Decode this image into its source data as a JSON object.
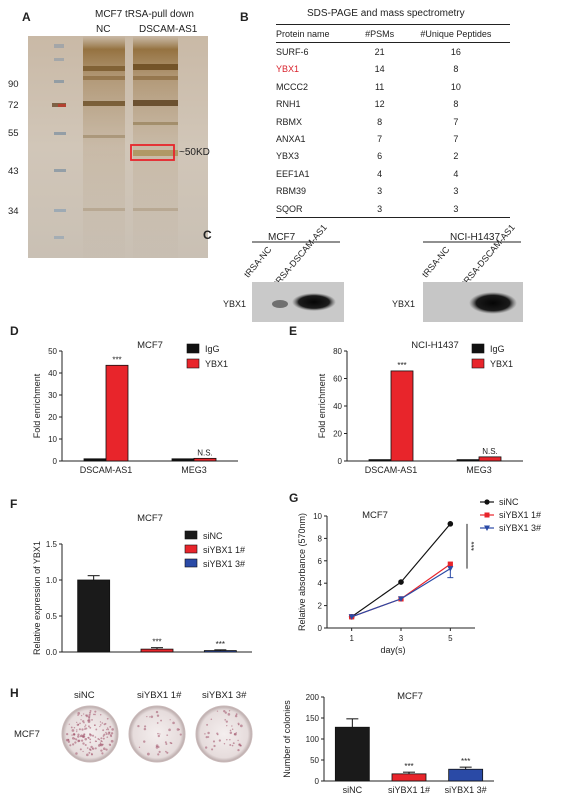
{
  "panelA": {
    "label": "A",
    "title": "MCF7 tRSA-pull down",
    "lanes": [
      "NC",
      "DSCAM-AS1"
    ],
    "markers": [
      "90",
      "72",
      "55",
      "43",
      "34"
    ],
    "band_label": "~50KD"
  },
  "panelB": {
    "label": "B",
    "title": "SDS-PAGE and mass spectrometry",
    "headers": [
      "Protein name",
      "#PSMs",
      "#Unique Peptides"
    ],
    "rows": [
      {
        "name": "SURF-6",
        "psms": "21",
        "peptides": "16"
      },
      {
        "name": "YBX1",
        "psms": "14",
        "peptides": "8"
      },
      {
        "name": "MCCC2",
        "psms": "11",
        "peptides": "10"
      },
      {
        "name": "RNH1",
        "psms": "12",
        "peptides": "8"
      },
      {
        "name": "RBMX",
        "psms": "8",
        "peptides": "7"
      },
      {
        "name": "ANXA1",
        "psms": "7",
        "peptides": "7"
      },
      {
        "name": "YBX3",
        "psms": "6",
        "peptides": "2"
      },
      {
        "name": "EEF1A1",
        "psms": "4",
        "peptides": "4"
      },
      {
        "name": "RBM39",
        "psms": "3",
        "peptides": "3"
      },
      {
        "name": "SQOR",
        "psms": "3",
        "peptides": "3"
      }
    ],
    "highlight_color": "#d9232d"
  },
  "panelC": {
    "label": "C",
    "blots": [
      {
        "cell": "MCF7",
        "lanes": [
          "tRSA-NC",
          "tRSA-DSCAM-AS1"
        ],
        "row_label": "YBX1"
      },
      {
        "cell": "NCI-H1437",
        "lanes": [
          "tRSA-NC",
          "tRSA-DSCAM-AS1"
        ],
        "row_label": "YBX1"
      }
    ]
  },
  "panelD": {
    "label": "D"
  },
  "panelE": {
    "label": "E"
  },
  "panelF": {
    "label": "F"
  },
  "panelG": {
    "label": "G"
  },
  "panelH": {
    "label": "H",
    "dish_labels": [
      "siNC",
      "siYBX1 1#",
      "siYBX1 3#"
    ],
    "row_label": "MCF7"
  },
  "chart_data": [
    {
      "id": "D",
      "type": "bar",
      "title": "MCF7",
      "categories": [
        "DSCAM-AS1",
        "MEG3"
      ],
      "series": [
        {
          "name": "IgG",
          "values": [
            1,
            1
          ],
          "color": "#111111"
        },
        {
          "name": "YBX1",
          "values": [
            43.5,
            1.2
          ],
          "color": "#e8252b"
        }
      ],
      "ylabel": "Fold enrichment",
      "ylim": [
        0,
        50
      ],
      "yticks": [
        0,
        10,
        20,
        30,
        40,
        50
      ],
      "annotations": [
        "***",
        "N.S."
      ]
    },
    {
      "id": "E",
      "type": "bar",
      "title": "NCI-H1437",
      "categories": [
        "DSCAM-AS1",
        "MEG3"
      ],
      "series": [
        {
          "name": "IgG",
          "values": [
            1,
            1
          ],
          "color": "#111111"
        },
        {
          "name": "YBX1",
          "values": [
            65.5,
            3
          ],
          "color": "#e8252b"
        }
      ],
      "ylabel": "Fold enrichment",
      "ylim": [
        0,
        80
      ],
      "yticks": [
        0,
        20,
        40,
        60,
        80
      ],
      "annotations": [
        "***",
        "N.S."
      ]
    },
    {
      "id": "F",
      "type": "bar",
      "title": "MCF7",
      "categories": [
        "siNC",
        "siYBX1 1#",
        "siYBX1 3#"
      ],
      "values": [
        1.0,
        0.04,
        0.02
      ],
      "errors": [
        0.06,
        0.02,
        0.01
      ],
      "colors": [
        "#1a1a1a",
        "#e8252b",
        "#2a4aa6"
      ],
      "legend": [
        "siNC",
        "siYBX1 1#",
        "siYBX1 3#"
      ],
      "ylabel": "Relative expression of YBX1",
      "ylim": [
        0,
        1.5
      ],
      "yticks": [
        "0.0",
        "0.5",
        "1.0",
        "1.5"
      ],
      "annotations": [
        "***",
        "***"
      ]
    },
    {
      "id": "G",
      "type": "line",
      "title": "MCF7",
      "x": [
        1,
        3,
        5
      ],
      "xticks": [
        "1",
        "3",
        "5"
      ],
      "series": [
        {
          "name": "siNC",
          "values": [
            1.0,
            4.1,
            9.3
          ],
          "color": "#111111",
          "marker": "circle"
        },
        {
          "name": "siYBX1 1#",
          "values": [
            1.0,
            2.6,
            5.7
          ],
          "color": "#e8252b",
          "marker": "square"
        },
        {
          "name": "siYBX1 3#",
          "values": [
            1.0,
            2.6,
            5.3
          ],
          "color": "#2a4aa6",
          "marker": "triangle"
        }
      ],
      "xlabel": "day(s)",
      "ylabel": "Relative absorbance (570nm)",
      "ylim": [
        0,
        10
      ],
      "yticks": [
        "0",
        "2",
        "4",
        "6",
        "8",
        "10"
      ],
      "annotations": [
        "***"
      ]
    },
    {
      "id": "H",
      "type": "bar",
      "title": "MCF7",
      "categories": [
        "siNC",
        "siYBX1 1#",
        "siYBX1 3#"
      ],
      "values": [
        128,
        17,
        28
      ],
      "errors": [
        20,
        4,
        5
      ],
      "colors": [
        "#1a1a1a",
        "#e8252b",
        "#2a4aa6"
      ],
      "ylabel": "Number of colonies",
      "ylim": [
        0,
        200
      ],
      "yticks": [
        "0",
        "50",
        "100",
        "150",
        "200"
      ],
      "annotations": [
        "***",
        "***"
      ]
    }
  ]
}
